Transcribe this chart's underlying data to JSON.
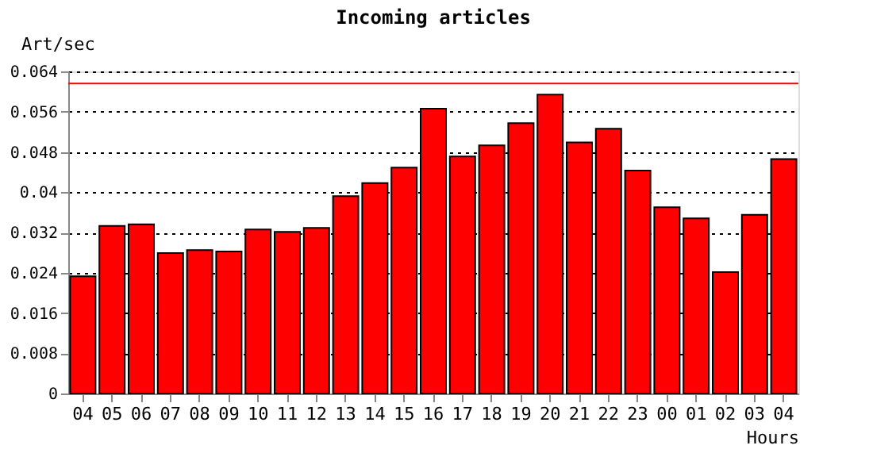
{
  "chart_data": {
    "type": "bar",
    "title": "Incoming articles",
    "ylabel": "Art/sec",
    "xlabel": "Hours",
    "categories": [
      "04",
      "05",
      "06",
      "07",
      "08",
      "09",
      "10",
      "11",
      "12",
      "13",
      "14",
      "15",
      "16",
      "17",
      "18",
      "19",
      "20",
      "21",
      "22",
      "23",
      "00",
      "01",
      "02",
      "03",
      "04"
    ],
    "values": [
      0.0233,
      0.0333,
      0.0336,
      0.0279,
      0.0285,
      0.0282,
      0.0326,
      0.0321,
      0.0329,
      0.0392,
      0.0418,
      0.0449,
      0.0566,
      0.0471,
      0.0493,
      0.0537,
      0.0594,
      0.0499,
      0.0526,
      0.0443,
      0.037,
      0.0348,
      0.0241,
      0.0355,
      0.0466
    ],
    "color": "#ff0000",
    "ylim": [
      0,
      0.064
    ],
    "yticks": [
      0,
      0.008,
      0.016,
      0.024,
      0.032,
      0.04,
      0.048,
      0.056,
      0.064
    ],
    "grid": "y",
    "ref_lines": [
      {
        "axis": "y",
        "value": 0.0616,
        "color": "#ff0000",
        "line_style": "solid"
      }
    ]
  }
}
